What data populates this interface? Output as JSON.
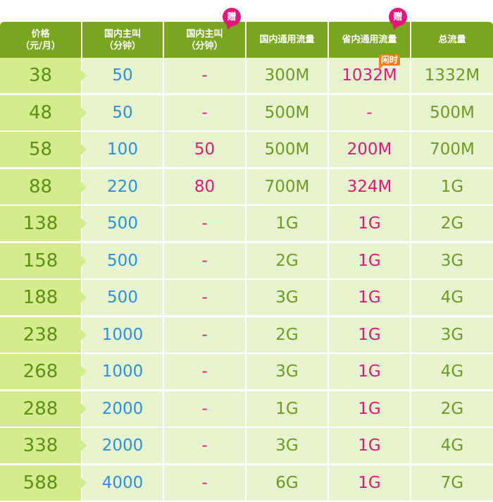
{
  "header": {
    "price": [
      "价格",
      "（元/月）"
    ],
    "calls": [
      "国内主叫",
      "（分钟）"
    ],
    "bonus_calls": [
      "国内主叫",
      "（分钟）"
    ],
    "bonus_badge": "赠",
    "national_data": "国内通用流量",
    "province_data": "省内通用流量",
    "province_badge": "赠",
    "total_data": "总流量",
    "idle_tag": "闲时"
  },
  "rows": [
    {
      "price": "38",
      "calls": "50",
      "bonus": "-",
      "national": "300M",
      "province": "1032M",
      "total": "1332M"
    },
    {
      "price": "48",
      "calls": "50",
      "bonus": "-",
      "national": "500M",
      "province": "-",
      "total": "500M"
    },
    {
      "price": "58",
      "calls": "100",
      "bonus": "50",
      "national": "500M",
      "province": "200M",
      "total": "700M"
    },
    {
      "price": "88",
      "calls": "220",
      "bonus": "80",
      "national": "700M",
      "province": "324M",
      "total": "1G"
    },
    {
      "price": "138",
      "calls": "500",
      "bonus": "-",
      "national": "1G",
      "province": "1G",
      "total": "2G"
    },
    {
      "price": "158",
      "calls": "500",
      "bonus": "-",
      "national": "2G",
      "province": "1G",
      "total": "3G"
    },
    {
      "price": "188",
      "calls": "500",
      "bonus": "-",
      "national": "3G",
      "province": "1G",
      "total": "4G"
    },
    {
      "price": "238",
      "calls": "1000",
      "bonus": "-",
      "national": "2G",
      "province": "1G",
      "total": "3G"
    },
    {
      "price": "268",
      "calls": "1000",
      "bonus": "-",
      "national": "3G",
      "province": "1G",
      "total": "4G"
    },
    {
      "price": "288",
      "calls": "2000",
      "bonus": "-",
      "national": "1G",
      "province": "1G",
      "total": "2G"
    },
    {
      "price": "338",
      "calls": "2000",
      "bonus": "-",
      "national": "3G",
      "province": "1G",
      "total": "4G"
    },
    {
      "price": "588",
      "calls": "4000",
      "bonus": "-",
      "national": "6G",
      "province": "1G",
      "total": "7G"
    }
  ],
  "colors": {
    "header_bg": "#7aa51e",
    "price_bg": "#d4ec8e",
    "body_bg": "#e7f3ce",
    "blue": "#2c8fd9",
    "pink": "#e2177a",
    "green": "#6f9a22",
    "tag_orange": "#f07d1e"
  }
}
